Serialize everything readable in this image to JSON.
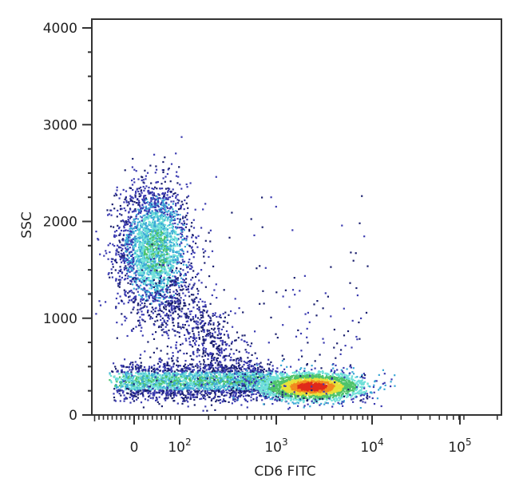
{
  "chart_data": {
    "type": "scatter",
    "subtype": "flow-cytometry-density-dot-plot",
    "title": "",
    "xlabel": "CD6 FITC",
    "ylabel": "SSC",
    "x_scale": "biexponential (logicle)",
    "y_scale": "linear",
    "ylim": [
      0,
      4000
    ],
    "y_ticks": [
      0,
      1000,
      2000,
      3000,
      4000
    ],
    "y_tick_labels": [
      "0",
      "1000",
      "2000",
      "3000",
      "4000"
    ],
    "x_tick_labels": [
      "0",
      "10^2",
      "10^3",
      "10^4",
      "10^5"
    ],
    "x_ticks": [
      0,
      100,
      1000,
      10000,
      100000
    ],
    "grid": false,
    "legend": null,
    "density_colors": [
      "#1a1f6e",
      "#3a3ab0",
      "#3aa7d6",
      "#6fe0d8",
      "#4fc36a",
      "#e8e23a",
      "#f28a1e",
      "#e02a1a"
    ],
    "populations": [
      {
        "name": "CD6-negative high-SSC cluster",
        "x_center": 50,
        "ssc_center": 1750,
        "ssc_range": [
          900,
          2650
        ],
        "density": "medium"
      },
      {
        "name": "CD6-negative low-SSC band",
        "x_center": 60,
        "ssc_center": 350,
        "ssc_range": [
          150,
          550
        ],
        "density": "medium"
      },
      {
        "name": "CD6-positive low-SSC cluster",
        "x_center": 2500,
        "ssc_center": 290,
        "ssc_range": [
          150,
          500
        ],
        "density": "high (peak red)"
      }
    ]
  },
  "axes": {
    "x": {
      "label": "CD6 FITC",
      "ticks": [
        {
          "label": "0",
          "base": "0",
          "exp": ""
        },
        {
          "label": "10^2",
          "base": "10",
          "exp": "2"
        },
        {
          "label": "10^3",
          "base": "10",
          "exp": "3"
        },
        {
          "label": "10^4",
          "base": "10",
          "exp": "4"
        },
        {
          "label": "10^5",
          "base": "10",
          "exp": "5"
        }
      ]
    },
    "y": {
      "label": "SSC",
      "ticks": [
        "0",
        "1000",
        "2000",
        "3000",
        "4000"
      ]
    }
  }
}
